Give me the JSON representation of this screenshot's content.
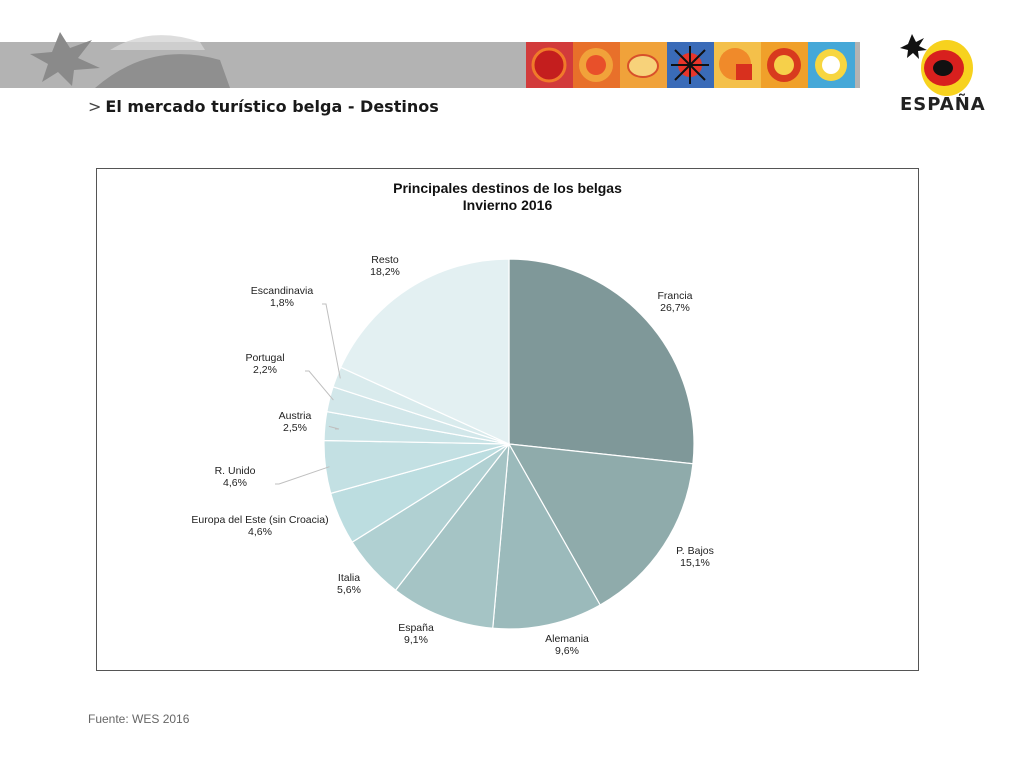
{
  "header": {
    "arrow": ">",
    "title": "El mercado turístico belga - Destinos"
  },
  "logo": {
    "text": "ESPAÑA",
    "icon": "spain-sun-logo"
  },
  "colors": {
    "banner": "#b3b3b3",
    "frame": "#555555"
  },
  "chart_data": {
    "type": "pie",
    "title": "Principales destinos de los belgas",
    "subtitle": "Invierno 2016",
    "slices": [
      {
        "label": "Francia",
        "value": 26.7,
        "display": "26,7%",
        "color": "#7f9899"
      },
      {
        "label": "P. Bajos",
        "value": 15.1,
        "display": "15,1%",
        "color": "#8fabab"
      },
      {
        "label": "Alemania",
        "value": 9.6,
        "display": "9,6%",
        "color": "#9bbabb"
      },
      {
        "label": "España",
        "value": 9.1,
        "display": "9,1%",
        "color": "#a5c4c5"
      },
      {
        "label": "Italia",
        "value": 5.6,
        "display": "5,6%",
        "color": "#b0d0d2"
      },
      {
        "label": "Europa del Este (sin Croacia)",
        "value": 4.6,
        "display": "4,6%",
        "color": "#bcdde0"
      },
      {
        "label": "R. Unido",
        "value": 4.6,
        "display": "4,6%",
        "color": "#c3e0e3"
      },
      {
        "label": "Austria",
        "value": 2.5,
        "display": "2,5%",
        "color": "#c9e3e6"
      },
      {
        "label": "Portugal",
        "value": 2.2,
        "display": "2,2%",
        "color": "#d2e7ea"
      },
      {
        "label": "Escandinavia",
        "value": 1.8,
        "display": "1,8%",
        "color": "#d9ebed"
      },
      {
        "label": "Resto",
        "value": 18.2,
        "display": "18,2%",
        "color": "#e3f0f2"
      }
    ]
  },
  "footer": {
    "source": "Fuente: WES 2016"
  }
}
